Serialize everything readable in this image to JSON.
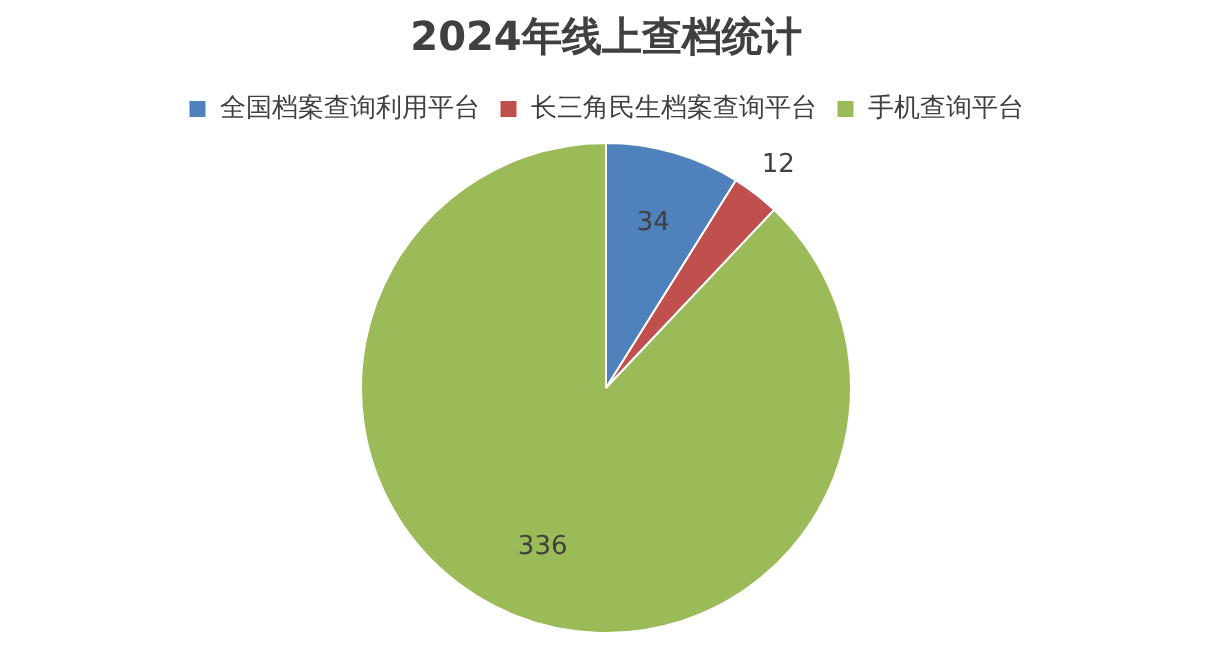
{
  "chart_data": {
    "type": "pie",
    "title": "2024年线上查档统计",
    "categories": [
      "全国档案查询利用平台",
      "长三角民生档案查询平台",
      "手机查询平台"
    ],
    "values": [
      34,
      12,
      336
    ],
    "colors": [
      "#4f81bd",
      "#c0504d",
      "#9bbb59"
    ],
    "legend": "top",
    "data_labels": true
  }
}
